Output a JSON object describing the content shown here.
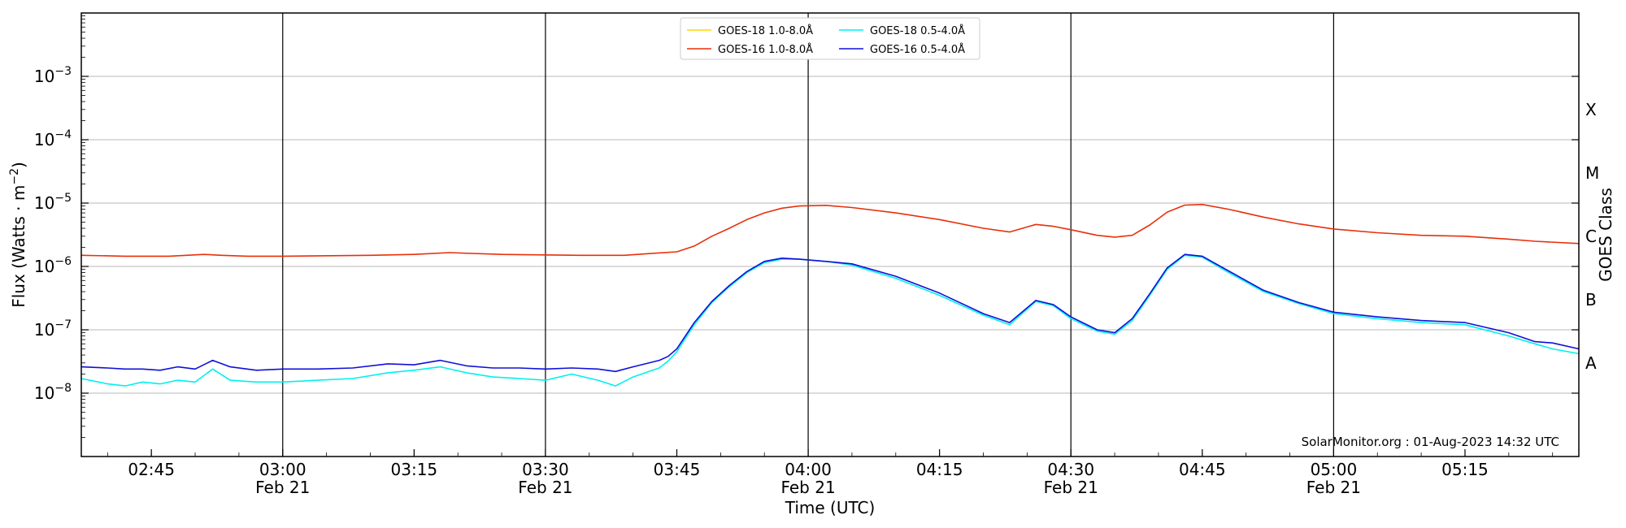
{
  "chart_data": {
    "type": "line",
    "xlabel": "Time (UTC)",
    "ylabel_text": "Flux (Watts · m",
    "ylabel_exp": "−2",
    "ylabel_close": ")",
    "right_label": "GOES Class",
    "y_scale": "log",
    "ylim": [
      1e-09,
      0.01
    ],
    "xlim": [
      "02:37",
      "05:28"
    ],
    "grid": "horizontal at decades",
    "legend_position": "top-center",
    "credit": "SolarMonitor.org : 01-Aug-2023 14:32 UTC",
    "y_ticks": [
      {
        "value": 1e-08,
        "base": "10",
        "exp": "−8"
      },
      {
        "value": 1e-07,
        "base": "10",
        "exp": "−7"
      },
      {
        "value": 1e-06,
        "base": "10",
        "exp": "−6"
      },
      {
        "value": 1e-05,
        "base": "10",
        "exp": "−5"
      },
      {
        "value": 0.0001,
        "base": "10",
        "exp": "−4"
      },
      {
        "value": 0.001,
        "base": "10",
        "exp": "−3"
      }
    ],
    "x_ticks": [
      {
        "time": "02:45",
        "label": "02:45",
        "date": ""
      },
      {
        "time": "03:00",
        "label": "03:00",
        "date": "Feb 21"
      },
      {
        "time": "03:15",
        "label": "03:15",
        "date": ""
      },
      {
        "time": "03:30",
        "label": "03:30",
        "date": "Feb 21"
      },
      {
        "time": "03:45",
        "label": "03:45",
        "date": ""
      },
      {
        "time": "04:00",
        "label": "04:00",
        "date": "Feb 21"
      },
      {
        "time": "04:15",
        "label": "04:15",
        "date": ""
      },
      {
        "time": "04:30",
        "label": "04:30",
        "date": "Feb 21"
      },
      {
        "time": "04:45",
        "label": "04:45",
        "date": ""
      },
      {
        "time": "05:00",
        "label": "05:00",
        "date": "Feb 21"
      },
      {
        "time": "05:15",
        "label": "05:15",
        "date": ""
      }
    ],
    "vertical_lines": [
      "03:00",
      "03:30",
      "04:00",
      "04:30",
      "05:00"
    ],
    "goes_classes": [
      {
        "label": "A",
        "flux": 3e-08
      },
      {
        "label": "B",
        "flux": 3e-07
      },
      {
        "label": "C",
        "flux": 3e-06
      },
      {
        "label": "M",
        "flux": 3e-05
      },
      {
        "label": "X",
        "flux": 0.0003
      }
    ],
    "series": [
      {
        "name": "GOES-18 1.0-8.0Å",
        "color": "#ffd700",
        "x": [],
        "y": []
      },
      {
        "name": "GOES-16 1.0-8.0Å",
        "color": "#e8300a",
        "x": [
          "02:37",
          "02:42",
          "02:47",
          "02:51",
          "02:53",
          "02:56",
          "03:00",
          "03:10",
          "03:15",
          "03:19",
          "03:25",
          "03:34",
          "03:39",
          "03:42",
          "03:45",
          "03:47",
          "03:49",
          "03:51",
          "03:53",
          "03:55",
          "03:57",
          "03:59",
          "04:02",
          "04:05",
          "04:10",
          "04:15",
          "04:20",
          "04:23",
          "04:26",
          "04:28",
          "04:30",
          "04:33",
          "04:35",
          "04:37",
          "04:39",
          "04:41",
          "04:43",
          "04:45",
          "04:48",
          "04:52",
          "04:56",
          "05:00",
          "05:05",
          "05:10",
          "05:15",
          "05:20",
          "05:23",
          "05:28"
        ],
        "y": [
          1.5e-06,
          1.45e-06,
          1.45e-06,
          1.55e-06,
          1.5e-06,
          1.45e-06,
          1.45e-06,
          1.5e-06,
          1.55e-06,
          1.65e-06,
          1.55e-06,
          1.5e-06,
          1.5e-06,
          1.6e-06,
          1.7e-06,
          2.1e-06,
          3e-06,
          4e-06,
          5.5e-06,
          7e-06,
          8.3e-06,
          9e-06,
          9.2e-06,
          8.5e-06,
          7e-06,
          5.5e-06,
          4e-06,
          3.5e-06,
          4.6e-06,
          4.3e-06,
          3.8e-06,
          3.1e-06,
          2.9e-06,
          3.1e-06,
          4.5e-06,
          7.2e-06,
          9.3e-06,
          9.5e-06,
          8e-06,
          6e-06,
          4.7e-06,
          3.9e-06,
          3.4e-06,
          3.1e-06,
          3e-06,
          2.7e-06,
          2.5e-06,
          2.3e-06
        ]
      },
      {
        "name": "GOES-18 0.5-4.0Å",
        "color": "#00f0f0",
        "x": [
          "02:37",
          "02:40",
          "02:42",
          "02:44",
          "02:46",
          "02:48",
          "02:50",
          "02:52",
          "02:54",
          "02:57",
          "03:00",
          "03:04",
          "03:08",
          "03:12",
          "03:15",
          "03:18",
          "03:21",
          "03:24",
          "03:27",
          "03:30",
          "03:33",
          "03:36",
          "03:38",
          "03:40",
          "03:43",
          "03:44",
          "03:45",
          "03:47",
          "03:49",
          "03:51",
          "03:53",
          "03:55",
          "03:57",
          "03:59",
          "04:02",
          "04:05",
          "04:10",
          "04:15",
          "04:20",
          "04:23",
          "04:26",
          "04:28",
          "04:30",
          "04:33",
          "04:35",
          "04:37",
          "04:39",
          "04:41",
          "04:43",
          "04:45",
          "04:48",
          "04:52",
          "04:56",
          "05:00",
          "05:05",
          "05:10",
          "05:15",
          "05:20",
          "05:23",
          "05:25",
          "05:28"
        ],
        "y": [
          1.7e-08,
          1.4e-08,
          1.3e-08,
          1.5e-08,
          1.4e-08,
          1.6e-08,
          1.5e-08,
          2.4e-08,
          1.6e-08,
          1.5e-08,
          1.5e-08,
          1.6e-08,
          1.7e-08,
          2.1e-08,
          2.3e-08,
          2.6e-08,
          2.1e-08,
          1.8e-08,
          1.7e-08,
          1.6e-08,
          2e-08,
          1.6e-08,
          1.3e-08,
          1.8e-08,
          2.5e-08,
          3.2e-08,
          4.5e-08,
          1.2e-07,
          2.7e-07,
          4.8e-07,
          8e-07,
          1.15e-06,
          1.3e-06,
          1.3e-06,
          1.2e-06,
          1.05e-06,
          6.5e-07,
          3.5e-07,
          1.7e-07,
          1.2e-07,
          2.8e-07,
          2.4e-07,
          1.5e-07,
          9.5e-08,
          8.5e-08,
          1.4e-07,
          3.5e-07,
          9e-07,
          1.5e-06,
          1.4e-06,
          8e-07,
          4e-07,
          2.6e-07,
          1.8e-07,
          1.5e-07,
          1.3e-07,
          1.2e-07,
          8e-08,
          6e-08,
          5e-08,
          4.2e-08
        ]
      },
      {
        "name": "GOES-16 0.5-4.0Å",
        "color": "#1010d8",
        "x": [
          "02:37",
          "02:40",
          "02:42",
          "02:44",
          "02:46",
          "02:48",
          "02:50",
          "02:52",
          "02:54",
          "02:57",
          "03:00",
          "03:04",
          "03:08",
          "03:12",
          "03:15",
          "03:18",
          "03:21",
          "03:24",
          "03:27",
          "03:30",
          "03:33",
          "03:36",
          "03:38",
          "03:40",
          "03:43",
          "03:44",
          "03:45",
          "03:47",
          "03:49",
          "03:51",
          "03:53",
          "03:55",
          "03:57",
          "03:59",
          "04:02",
          "04:05",
          "04:10",
          "04:15",
          "04:20",
          "04:23",
          "04:26",
          "04:28",
          "04:30",
          "04:33",
          "04:35",
          "04:37",
          "04:39",
          "04:41",
          "04:43",
          "04:45",
          "04:48",
          "04:52",
          "04:56",
          "05:00",
          "05:05",
          "05:10",
          "05:15",
          "05:20",
          "05:23",
          "05:25",
          "05:28"
        ],
        "y": [
          2.6e-08,
          2.5e-08,
          2.4e-08,
          2.4e-08,
          2.3e-08,
          2.6e-08,
          2.4e-08,
          3.3e-08,
          2.6e-08,
          2.3e-08,
          2.4e-08,
          2.4e-08,
          2.5e-08,
          2.9e-08,
          2.8e-08,
          3.3e-08,
          2.7e-08,
          2.5e-08,
          2.5e-08,
          2.4e-08,
          2.5e-08,
          2.4e-08,
          2.2e-08,
          2.6e-08,
          3.3e-08,
          3.8e-08,
          5e-08,
          1.3e-07,
          2.8e-07,
          5e-07,
          8.3e-07,
          1.2e-06,
          1.35e-06,
          1.3e-06,
          1.2e-06,
          1.1e-06,
          7e-07,
          3.8e-07,
          1.8e-07,
          1.3e-07,
          2.9e-07,
          2.5e-07,
          1.6e-07,
          1e-07,
          9e-08,
          1.5e-07,
          3.7e-07,
          9.5e-07,
          1.55e-06,
          1.45e-06,
          8.5e-07,
          4.2e-07,
          2.7e-07,
          1.9e-07,
          1.6e-07,
          1.4e-07,
          1.3e-07,
          9e-08,
          6.5e-08,
          6.2e-08,
          5e-08
        ]
      }
    ]
  }
}
